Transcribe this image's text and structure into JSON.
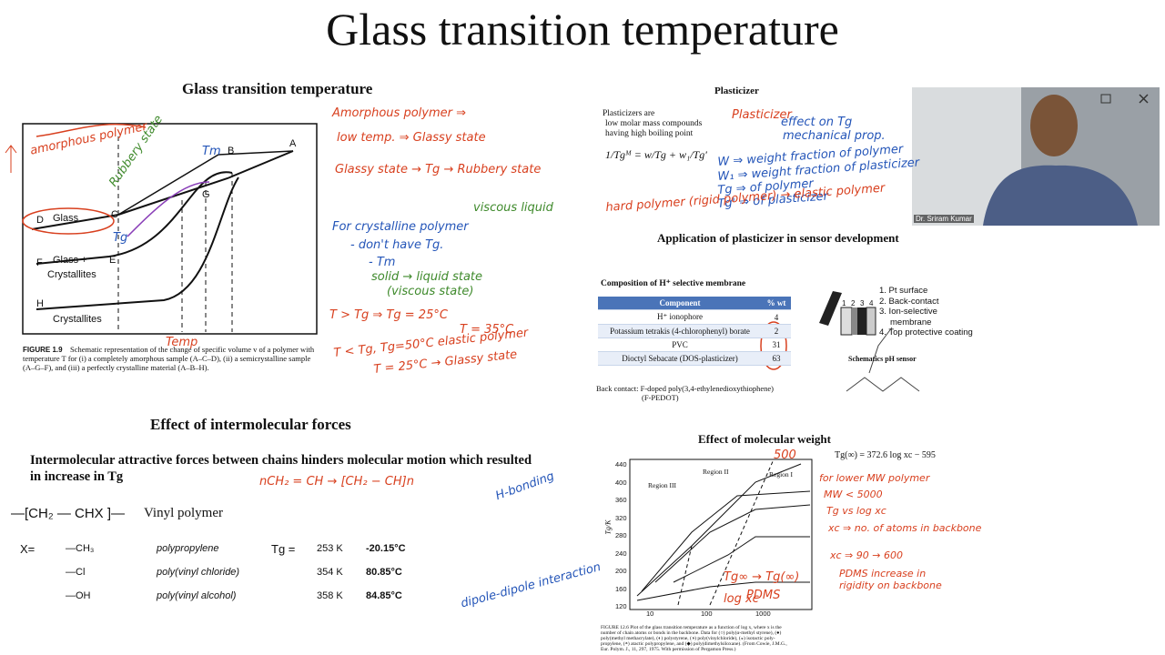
{
  "title": "Glass transition temperature",
  "amorphous_panel": {
    "heading": "Glass transition temperature",
    "figure_labels": [
      "A",
      "B",
      "C",
      "D",
      "E",
      "F",
      "G",
      "H",
      "Glass",
      "Glass +",
      "Crystallites",
      "Crystallites"
    ],
    "caption_label": "FIGURE 1.9",
    "caption": "Schematic representation of the change of specific volume v of a polymer with temperature T for (i) a completely amorphous sample (A–C–D), (ii) a semicrystalline sample (A–G–F), and (iii) a perfectly crystalline material (A–B–H)."
  },
  "plasticizer_panel": {
    "heading": "Plasticizer",
    "intro": "Plasticizers are",
    "bullets": [
      "low molar mass compounds",
      "having high boiling point"
    ],
    "equation": "1/Tgᴹ = w/Tg + w₁/Tg′"
  },
  "video": {
    "presenter": "Dr. Sriram Kumar"
  },
  "sensor_panel": {
    "heading": "Application of plasticizer in sensor development",
    "table_title": "Composition of H⁺ selective membrane",
    "table_header": [
      "Component",
      "% wt"
    ],
    "table_rows": [
      [
        "H⁺ ionophore",
        "4"
      ],
      [
        "Potassium tetrakis (4-chlorophenyl) borate",
        "2"
      ],
      [
        "PVC",
        "31"
      ],
      [
        "Dioctyl Sebacate (DOS-plasticizer)",
        "63"
      ]
    ],
    "layer_numbers": [
      "1",
      "2",
      "3",
      "4"
    ],
    "layers": [
      "1. Pt surface",
      "2. Back-contact",
      "3. Ion-selective",
      "membrane",
      "4. Top protective coating"
    ],
    "schematic_label": "Schematics pH sensor",
    "back_contact": [
      "Back contact: F-doped poly(3,4-ethylenedioxythiophene)",
      "(F-PEDOT)"
    ]
  },
  "intermolecular_panel": {
    "heading": "Effect of intermolecular forces",
    "text": "Intermolecular attractive forces between chains hinders molecular motion which resulted in increase in Tg",
    "formula": "—[CH₂ — CHX ]—",
    "formula_label": "Vinyl polymer",
    "x_label": "X=",
    "tg_label": "Tg =",
    "rows": [
      [
        "—CH₃",
        "polypropylene",
        "253 K",
        "-20.15°C"
      ],
      [
        "—Cl",
        "poly(vinyl chloride)",
        "354 K",
        "80.85°C"
      ],
      [
        "—OH",
        "poly(vinyl alcohol)",
        "358 K",
        "84.85°C"
      ]
    ]
  },
  "molecular_weight_panel": {
    "heading": "Effect of molecular weight",
    "equation": "Tg(∞) = 372.6 log xc − 595",
    "y_label": "Tg/K",
    "yticks": [
      "440",
      "400",
      "360",
      "320",
      "280",
      "240",
      "200",
      "160",
      "120"
    ],
    "xticks": [
      "10",
      "100",
      "1000"
    ],
    "regions": [
      "Region I",
      "Region II",
      "Region III"
    ],
    "caption": "FIGURE 12.6 Plot of the glass transition temperature as a function of log x, where x is the number of chain atoms or bonds in the backbone. Data for (○) poly(α-methyl styrene), (●) poly(methyl methacrylate), (◐) polystyrene, (◑) poly(vinylchloride), (◒) isotactic poly-propylene, (◓) atactic polypropylene, and (◆) poly(dimethylsiloxane). (From Cowie, J.M.G., Eur. Polym. J., 11, 297, 1975. With permission of Pergamon Press.)"
  },
  "annotations": [
    {
      "text": "Amorphous polymer ⇒",
      "color": "#d8401f"
    },
    {
      "text": "low temp. ⇒ Glassy state",
      "color": "#d8401f"
    },
    {
      "text": "Glassy state → Tg → Rubbery state",
      "color": "#d8401f"
    },
    {
      "text": "viscous liquid",
      "color": "#3f8a2c"
    },
    {
      "text": "For crystalline polymer",
      "color": "#2455b8"
    },
    {
      "text": "- don't have Tg.",
      "color": "#2455b8"
    },
    {
      "text": "- Tm",
      "color": "#2455b8"
    },
    {
      "text": "solid → liquid state",
      "color": "#3f8a2c"
    },
    {
      "text": "(viscous state)",
      "color": "#3f8a2c"
    },
    {
      "text": "T > Tg ⇒ Tg = 25°C",
      "color": "#d8401f"
    },
    {
      "text": "T = 35°C",
      "color": "#d8401f"
    },
    {
      "text": "T < Tg, Tg=50°C elastic polymer",
      "color": "#d8401f"
    },
    {
      "text": "T = 25°C → Glassy state",
      "color": "#d8401f"
    },
    {
      "text": "amorphous polymer",
      "color": "#d8401f"
    },
    {
      "text": "Rubbery state",
      "color": "#3f8a2c"
    },
    {
      "text": "Temp",
      "color": "#d8401f"
    },
    {
      "text": "Tm",
      "color": "#2455b8"
    },
    {
      "text": "Tg",
      "color": "#2455b8"
    },
    {
      "text": "Plasticizer",
      "color": "#d8401f"
    },
    {
      "text": "effect on Tg",
      "color": "#2455b8"
    },
    {
      "text": "mechanical prop.",
      "color": "#2455b8"
    },
    {
      "text": "W ⇒ weight fraction of polymer",
      "color": "#2455b8"
    },
    {
      "text": "W₁ ⇒ weight fraction of plasticizer",
      "color": "#2455b8"
    },
    {
      "text": "Tg ⇒ of polymer",
      "color": "#2455b8"
    },
    {
      "text": "Tg' ⇒ of plasticizer",
      "color": "#2455b8"
    },
    {
      "text": "hard polymer (rigid polymer) → elastic polymer",
      "color": "#d8401f"
    },
    {
      "text": "nCH₂ = CH → [CH₂ − CH]n",
      "color": "#d8401f"
    },
    {
      "text": "H-bonding",
      "color": "#2455b8"
    },
    {
      "text": "dipole-dipole interaction",
      "color": "#2455b8"
    },
    {
      "text": "for lower MW polymer",
      "color": "#d8401f"
    },
    {
      "text": "MW < 5000",
      "color": "#d8401f"
    },
    {
      "text": "Tg vs log xc",
      "color": "#d8401f"
    },
    {
      "text": "xc ⇒ no. of atoms in backbone",
      "color": "#d8401f"
    },
    {
      "text": "xc ⇒ 90 → 600",
      "color": "#d8401f"
    },
    {
      "text": "PDMS increase in rigidity on backbone",
      "color": "#d8401f"
    },
    {
      "text": "500",
      "color": "#d8401f"
    },
    {
      "text": "Tg∞ → Tg(∞)",
      "color": "#d8401f"
    },
    {
      "text": "log xc",
      "color": "#d8401f"
    },
    {
      "text": "PDMS",
      "color": "#d8401f"
    }
  ]
}
